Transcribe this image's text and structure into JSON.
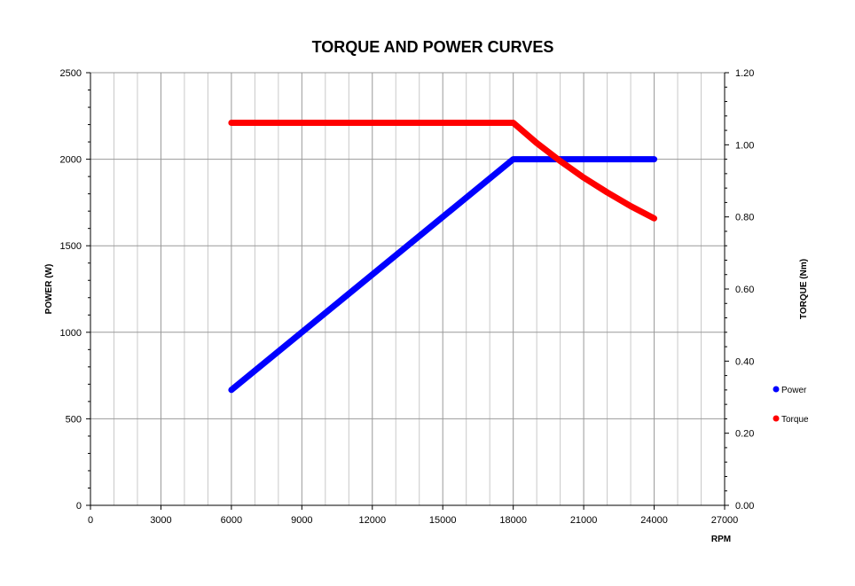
{
  "chart_data": {
    "type": "line",
    "title": "TORQUE AND POWER CURVES",
    "xlabel": "RPM",
    "ylabel": "POWER (W)",
    "y2label": "TORQUE (Nm)",
    "xlim": [
      0,
      27000
    ],
    "ylim": [
      0,
      2500
    ],
    "y2lim": [
      0,
      1.2
    ],
    "xticks": [
      0,
      3000,
      6000,
      9000,
      12000,
      15000,
      18000,
      21000,
      24000,
      27000
    ],
    "xtick_labels": [
      "0",
      "3000",
      "6000",
      "9000",
      "12000",
      "15000",
      "18000",
      "21000",
      "24000",
      "27000"
    ],
    "yticks": [
      0,
      500,
      1000,
      1500,
      2000,
      2500
    ],
    "ytick_labels": [
      "0",
      "500",
      "1000",
      "1500",
      "2000",
      "2500"
    ],
    "y2ticks": [
      0,
      0.2,
      0.4,
      0.6,
      0.8,
      1.0,
      1.2
    ],
    "y2tick_labels": [
      "0.00",
      "0.20",
      "0.40",
      "0.60",
      "0.80",
      "1.00",
      "1.20"
    ],
    "grid": true,
    "legend_position": "right",
    "series": [
      {
        "name": "Power",
        "axis": "left",
        "color": "#0000ff",
        "x": [
          6000,
          18000,
          24000
        ],
        "y": [
          667,
          2000,
          2000
        ]
      },
      {
        "name": "Torque",
        "axis": "right",
        "color": "#ff0000",
        "x": [
          6000,
          18000,
          19000,
          20000,
          21000,
          22000,
          23000,
          24000
        ],
        "y": [
          1.061,
          1.061,
          1.005,
          0.955,
          0.909,
          0.868,
          0.83,
          0.796
        ]
      }
    ]
  }
}
